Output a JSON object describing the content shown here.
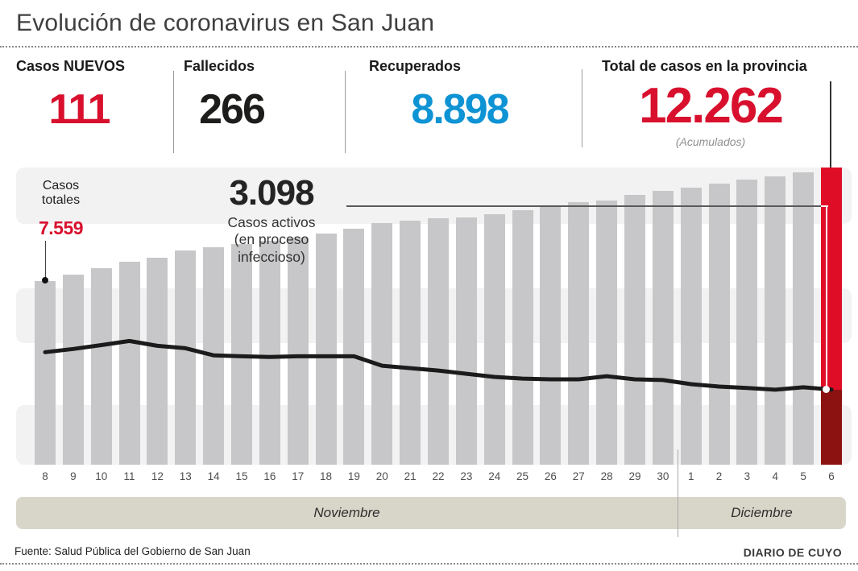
{
  "title": "Evolución de coronavirus en San Juan",
  "stats": [
    {
      "label": "Casos NUEVOS",
      "value": "111",
      "color": "#d8102e"
    },
    {
      "label": "Fallecidos",
      "value": "266",
      "color": "#1d1d1b"
    },
    {
      "label": "Recuperados",
      "value": "8.898",
      "color": "#0e93d4"
    },
    {
      "label": "Total de casos en la provincia",
      "value": "12.262",
      "note": "(Acumulados)",
      "color": "#d8102e"
    }
  ],
  "chart_data": {
    "type": "bar+line",
    "categories": [
      "8",
      "9",
      "10",
      "11",
      "12",
      "13",
      "14",
      "15",
      "16",
      "17",
      "18",
      "19",
      "20",
      "21",
      "22",
      "23",
      "24",
      "25",
      "26",
      "27",
      "28",
      "29",
      "30",
      "1",
      "2",
      "3",
      "4",
      "5",
      "6"
    ],
    "month_groups": [
      {
        "label": "Noviembre",
        "from": "8",
        "to": "30",
        "days": 23
      },
      {
        "label": "Diciembre",
        "from": "1",
        "to": "6",
        "days": 6
      }
    ],
    "series": [
      {
        "name": "Casos totales (acumulados)",
        "type": "bar",
        "values": [
          7559,
          7830,
          8090,
          8360,
          8550,
          8820,
          8980,
          9110,
          9240,
          9370,
          9540,
          9740,
          9970,
          10070,
          10170,
          10200,
          10330,
          10500,
          10660,
          10830,
          10890,
          11120,
          11290,
          11420,
          11590,
          11750,
          11880,
          12050,
          12262
        ]
      },
      {
        "name": "Casos activos (en proceso infeccioso)",
        "type": "line",
        "values": [
          4640,
          4770,
          4930,
          5100,
          4900,
          4800,
          4510,
          4470,
          4440,
          4470,
          4470,
          4470,
          4080,
          3980,
          3880,
          3750,
          3620,
          3550,
          3520,
          3520,
          3650,
          3520,
          3490,
          3320,
          3220,
          3160,
          3090,
          3190,
          3098
        ]
      }
    ],
    "highlight_index": 28,
    "ylim": [
      0,
      12262
    ],
    "legend_position": "none",
    "grid": "horizontal-bands",
    "annotations": {
      "first_bar": {
        "title": "Casos\ntotales",
        "value": "7.559"
      },
      "active": {
        "value": "3.098",
        "caption": "Casos activos\n(en proceso\ninfeccioso)"
      }
    },
    "colors": {
      "bar": "#c7c7c9",
      "bar_highlight": "#e00d26",
      "bar_highlight_dark": "#8c1211",
      "line": "#1b1b1b",
      "band": "#f2f2f2",
      "month_band": "#d8d6c9"
    }
  },
  "footer": {
    "source": "Fuente: Salud Pública del Gobierno de San Juan",
    "credit": "DIARIO DE CUYO"
  }
}
